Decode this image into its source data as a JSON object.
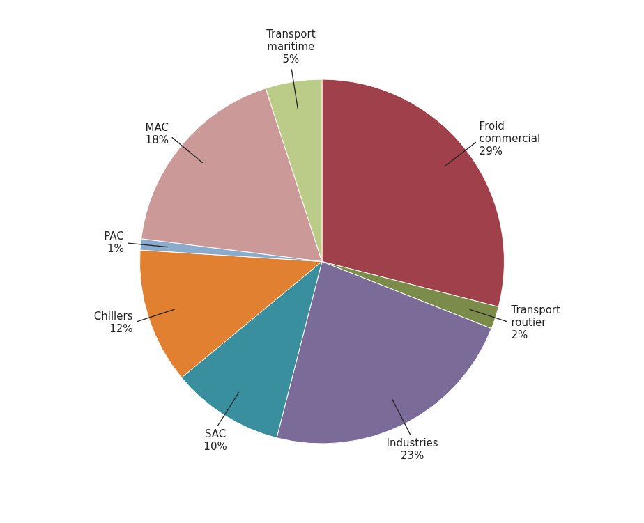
{
  "chart_data": {
    "type": "pie",
    "categories": [
      "Froid\ncommercial",
      "Transport\nroutier",
      "Industries",
      "SAC",
      "Chillers",
      "PAC",
      "MAC",
      "Transport\nmaritime"
    ],
    "values": [
      29,
      2,
      23,
      10,
      12,
      1,
      18,
      5
    ],
    "value_labels": [
      "29%",
      "2%",
      "23%",
      "10%",
      "12%",
      "1%",
      "18%",
      "5%"
    ],
    "colors": [
      "#A0404A",
      "#7B8C4A",
      "#7B6B99",
      "#3A8F9E",
      "#E08030",
      "#8AABCC",
      "#CC9999",
      "#BBCC88"
    ],
    "data_labels": true
  }
}
